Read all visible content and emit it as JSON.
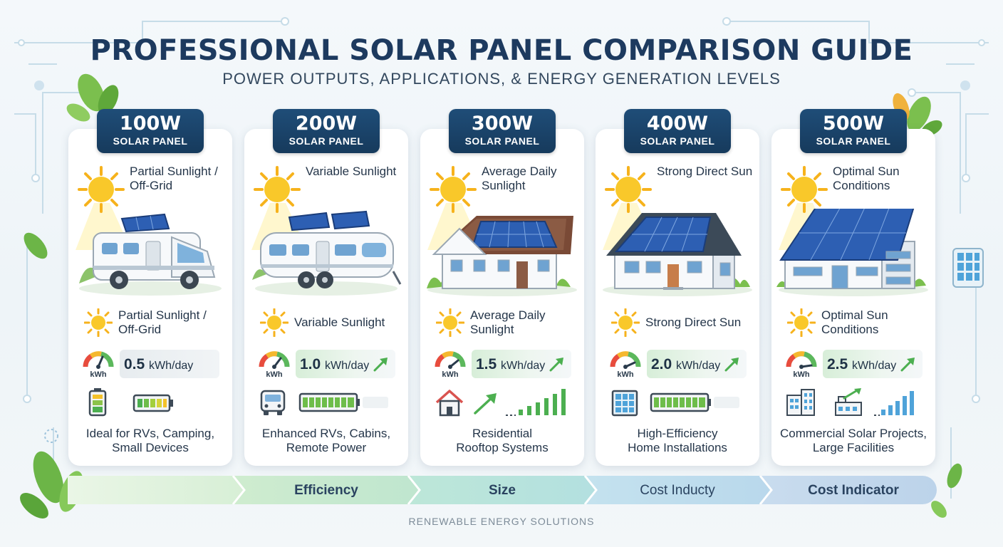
{
  "header": {
    "title": "PROFESSIONAL SOLAR PANEL COMPARISON GUIDE",
    "subtitle": "POWER OUTPUTS, APPLICATIONS, & ENERGY GENERATION LEVELS"
  },
  "panels": [
    {
      "watt": "100W",
      "kind": "SOLAR PANEL",
      "condition_top": "Partial Sunlight / Off-Grid",
      "condition_mid": "Partial Sunlight / Off-Grid",
      "gauge_label": "kWh",
      "energy_value": "0.5",
      "energy_unit": "kWh/day",
      "use_line1": "Ideal for RVs, Camping,",
      "use_line2": "Small Devices",
      "scene_icon": "campervan-icon",
      "icons": [
        "battery-icon",
        "battery-horizontal-icon"
      ]
    },
    {
      "watt": "200W",
      "kind": "SOLAR PANEL",
      "condition_top": "Variable Sunlight",
      "condition_mid": "Variable Sunlight",
      "gauge_label": "kWh",
      "energy_value": "1.0",
      "energy_unit": "kWh/day",
      "use_line1": "Enhanced RVs, Cabins,",
      "use_line2": "Remote Power",
      "scene_icon": "caravan-icon",
      "icons": [
        "rv-front-icon",
        "battery-horizontal-icon"
      ]
    },
    {
      "watt": "300W",
      "kind": "SOLAR PANEL",
      "condition_top": "Average Daily Sunlight",
      "condition_mid": "Average Daily Sunlight",
      "gauge_label": "kWh",
      "energy_value": "1.5",
      "energy_unit": "kWh/day",
      "use_line1": "Residential",
      "use_line2": "Rooftop Systems",
      "scene_icon": "house-icon",
      "icons": [
        "home-icon",
        "trend-arrow-icon",
        "bar-chart-icon"
      ]
    },
    {
      "watt": "400W",
      "kind": "SOLAR PANEL",
      "condition_top": "Strong Direct Sun",
      "condition_mid": "Strong Direct Sun",
      "gauge_label": "kWh",
      "energy_value": "2.0",
      "energy_unit": "kWh/day",
      "use_line1": "High-Efficiency",
      "use_line2": "Home Installations",
      "scene_icon": "modern-house-icon",
      "icons": [
        "solar-grid-icon",
        "battery-horizontal-icon"
      ]
    },
    {
      "watt": "500W",
      "kind": "SOLAR PANEL",
      "condition_top": "Optimal Sun Conditions",
      "condition_mid": "Optimal Sun Conditions",
      "gauge_label": "kWh",
      "energy_value": "2.5",
      "energy_unit": "kWh/day",
      "use_line1": "Commercial Solar Projects,",
      "use_line2": "Large Facilities",
      "scene_icon": "commercial-building-icon",
      "icons": [
        "office-building-icon",
        "factory-growth-icon",
        "bar-chart-icon"
      ]
    }
  ],
  "flow": {
    "labels": [
      "",
      "Efficiency",
      "Size",
      "Cost Inducty",
      "Cost Indicator"
    ]
  },
  "footer": "RENEWABLE ENERGY SOLUTIONS",
  "colors": {
    "navy": "#1d3a5f",
    "badge": "#1f4d78",
    "sun": "#f6c21c",
    "green": "#4caf50",
    "leaf": "#6ab04c",
    "panel": "#2d5fb3"
  }
}
